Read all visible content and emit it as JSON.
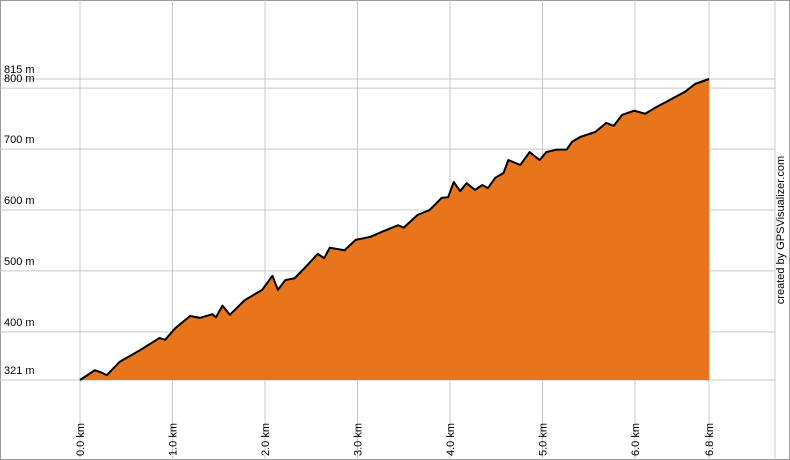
{
  "chart_data": {
    "type": "area",
    "credit": "created by GPSVisualizer.com",
    "x": [
      0.0,
      0.16,
      0.22,
      0.29,
      0.43,
      0.65,
      0.86,
      0.92,
      1.03,
      1.19,
      1.3,
      1.43,
      1.47,
      1.54,
      1.62,
      1.78,
      1.97,
      2.08,
      2.14,
      2.22,
      2.32,
      2.43,
      2.57,
      2.64,
      2.7,
      2.86,
      2.98,
      3.14,
      3.26,
      3.44,
      3.5,
      3.65,
      3.78,
      3.91,
      3.98,
      4.04,
      4.11,
      4.18,
      4.27,
      4.35,
      4.41,
      4.49,
      4.58,
      4.63,
      4.76,
      4.86,
      4.97,
      5.04,
      5.15,
      5.26,
      5.32,
      5.41,
      5.57,
      5.69,
      5.77,
      5.86,
      5.99,
      6.11,
      6.22,
      6.38,
      6.54,
      6.65,
      6.8
    ],
    "values": [
      321,
      337,
      334,
      329,
      351,
      370,
      390,
      387,
      406,
      426,
      423,
      429,
      424,
      443,
      428,
      452,
      469,
      492,
      469,
      485,
      488,
      505,
      528,
      521,
      538,
      534,
      551,
      556,
      564,
      575,
      571,
      592,
      600,
      620,
      621,
      646,
      631,
      644,
      633,
      641,
      636,
      653,
      661,
      682,
      674,
      695,
      682,
      695,
      699,
      699,
      712,
      720,
      728,
      743,
      738,
      756,
      763,
      758,
      768,
      781,
      794,
      807,
      815
    ],
    "color": "#e8741c",
    "line_color": "#000000",
    "xlim": [
      0,
      6.8
    ],
    "ylim": [
      321,
      815
    ],
    "xticks": [
      {
        "value": 0,
        "label": "0.0 km"
      },
      {
        "value": 1,
        "label": "1.0 km"
      },
      {
        "value": 2,
        "label": "2.0 km"
      },
      {
        "value": 3,
        "label": "3.0 km"
      },
      {
        "value": 4,
        "label": "4.0 km"
      },
      {
        "value": 5,
        "label": "5.0 km"
      },
      {
        "value": 6,
        "label": "6.0 km"
      },
      {
        "value": 6.8,
        "label": "6.8 km"
      }
    ],
    "yticks": [
      {
        "value": 321,
        "label": "321 m"
      },
      {
        "value": 400,
        "label": "400 m"
      },
      {
        "value": 500,
        "label": "500 m"
      },
      {
        "value": 600,
        "label": "600 m"
      },
      {
        "value": 700,
        "label": "700 m"
      },
      {
        "value": 800,
        "label": "800 m"
      },
      {
        "value": 815,
        "label": "815 m"
      }
    ],
    "grid": true
  }
}
